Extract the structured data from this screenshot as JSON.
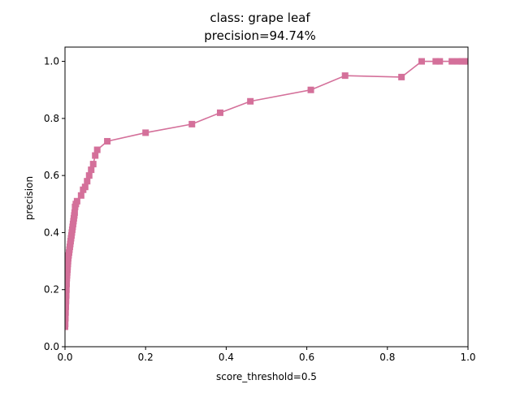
{
  "chart_data": {
    "type": "line",
    "title": "class: grape leaf",
    "subtitle": "precision=94.74%",
    "xlabel": "score_threshold=0.5",
    "ylabel": "precision",
    "xlim": [
      0.0,
      1.0
    ],
    "ylim": [
      0.0,
      1.05
    ],
    "x_ticks": [
      "0.0",
      "0.2",
      "0.4",
      "0.6",
      "0.8",
      "1.0"
    ],
    "y_ticks": [
      "0.0",
      "0.2",
      "0.4",
      "0.6",
      "0.8",
      "1.0"
    ],
    "grid": false,
    "legend": "none",
    "line_color": "#d4709a",
    "marker": "square",
    "series": [
      {
        "x": [
          0.0,
          0.0005,
          0.001,
          0.0015,
          0.002,
          0.0025,
          0.003,
          0.0035,
          0.004,
          0.0045,
          0.005,
          0.0055,
          0.006,
          0.0065,
          0.007,
          0.0075,
          0.008,
          0.009,
          0.01,
          0.011,
          0.012,
          0.013,
          0.014,
          0.015,
          0.016,
          0.017,
          0.018,
          0.019,
          0.02,
          0.021,
          0.022,
          0.023,
          0.024,
          0.025,
          0.027,
          0.03,
          0.04,
          0.045,
          0.05,
          0.055,
          0.06,
          0.065,
          0.07,
          0.075,
          0.08,
          0.105,
          0.2,
          0.315,
          0.385,
          0.46,
          0.61,
          0.695,
          0.835,
          0.885,
          0.92,
          0.93,
          0.96,
          0.975,
          0.985,
          0.993,
          1.0
        ],
        "y": [
          0.07,
          0.08,
          0.1,
          0.12,
          0.14,
          0.16,
          0.18,
          0.2,
          0.22,
          0.24,
          0.25,
          0.26,
          0.27,
          0.28,
          0.29,
          0.3,
          0.31,
          0.32,
          0.33,
          0.34,
          0.35,
          0.36,
          0.37,
          0.38,
          0.39,
          0.4,
          0.41,
          0.42,
          0.43,
          0.44,
          0.45,
          0.46,
          0.47,
          0.49,
          0.5,
          0.51,
          0.53,
          0.55,
          0.56,
          0.58,
          0.6,
          0.62,
          0.64,
          0.67,
          0.69,
          0.72,
          0.75,
          0.78,
          0.82,
          0.86,
          0.9,
          0.95,
          0.945,
          1.0,
          1.0,
          1.0,
          1.0,
          1.0,
          1.0,
          1.0,
          1.0
        ]
      }
    ]
  }
}
